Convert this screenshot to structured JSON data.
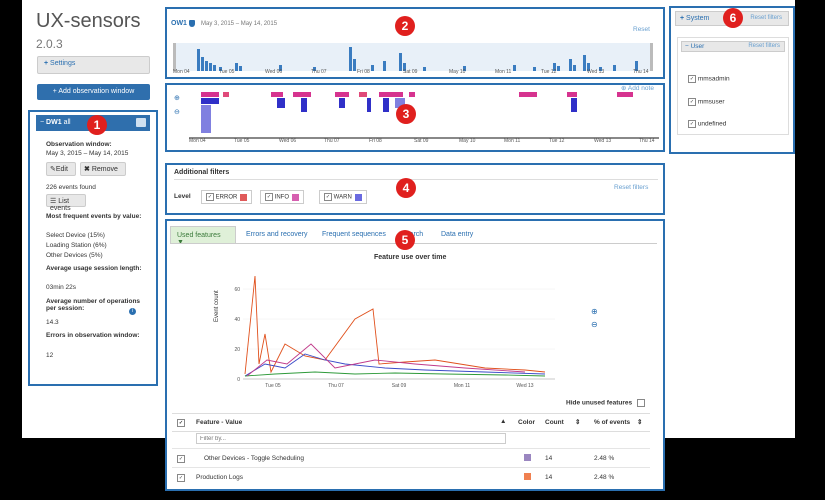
{
  "app": {
    "title": "UX-sensors",
    "version": "2.0.3"
  },
  "left": {
    "settings_label": "Settings",
    "add_window_label": "Add observation window",
    "window_title": "DW1",
    "window_title_suffix": "all",
    "obs_label": "Observation window:",
    "obs_range": "May 3, 2015 – May 14, 2015",
    "edit_label": "Edit",
    "remove_label": "Remove",
    "events_found": "226 events found",
    "list_events_label": "List events",
    "most_frequent_heading": "Most frequent events by value:",
    "most_frequent": [
      "Select Device (15%)",
      "Loading Station (6%)",
      "Other Devices (5%)"
    ],
    "avg_session_heading": "Average usage session length:",
    "avg_session_value": "03min 22s",
    "avg_ops_heading": "Average number of operations per session:",
    "avg_ops_value": "14.3",
    "errors_heading": "Errors in observation window:",
    "errors_value": "12"
  },
  "callouts": [
    "1",
    "2",
    "3",
    "4",
    "5",
    "6"
  ],
  "timeline": {
    "label": "OW1",
    "range": "May 3, 2015 – May 14, 2015",
    "reset_label": "Reset",
    "axis": [
      "Mon 04",
      "Tue 05",
      "Wed 06",
      "Thu 07",
      "Fri 08",
      "Sat 09",
      "May 10",
      "Mon 11",
      "Tue 12",
      "Wed 13",
      "Thu 14"
    ]
  },
  "events_panel": {
    "add_note_label": "Add note",
    "axis": [
      "Mon 04",
      "Tue 05",
      "Wed 06",
      "Thu 07",
      "Fri 08",
      "Sat 09",
      "May 10",
      "Mon 11",
      "Tue 12",
      "Wed 13",
      "Thu 14"
    ]
  },
  "filters": {
    "title": "Additional filters",
    "level_label": "Level",
    "chips": [
      {
        "label": "ERROR",
        "color": "#e05a5a"
      },
      {
        "label": "INFO",
        "color": "#d65fb0"
      },
      {
        "label": "WARN",
        "color": "#6a6ae0"
      }
    ],
    "reset_label": "Reset filters"
  },
  "tabs": [
    "Used features",
    "Errors and recovery",
    "Frequent sequences",
    "Search",
    "Data entry"
  ],
  "chart_data": {
    "type": "line",
    "title": "Feature use over time",
    "ylabel": "Event count",
    "yticks": [
      "0",
      "20",
      "40",
      "60"
    ],
    "xticks": [
      "Tue 05",
      "Thu 07",
      "Sat 09",
      "Mon 11",
      "Wed 13"
    ],
    "ylim": [
      0,
      70
    ]
  },
  "table": {
    "hide_unused_label": "Hide unused features",
    "headers": {
      "feature": "Feature - Value",
      "color": "Color",
      "count": "Count",
      "pct": "% of events"
    },
    "filter_placeholder": "Filter by...",
    "rows": [
      {
        "feature": "Other Devices - Toggle Scheduling",
        "color": "#9a86c0",
        "count": "14",
        "pct": "2.48 %"
      },
      {
        "feature": "Production Logs",
        "color": "#f08050",
        "count": "14",
        "pct": "2.48 %"
      }
    ]
  },
  "right": {
    "system_label": "System",
    "system_reset": "Reset filters",
    "user_label": "User",
    "user_reset": "Reset filters",
    "users": [
      "mmsadmin",
      "mmsuser",
      "undefined"
    ]
  }
}
